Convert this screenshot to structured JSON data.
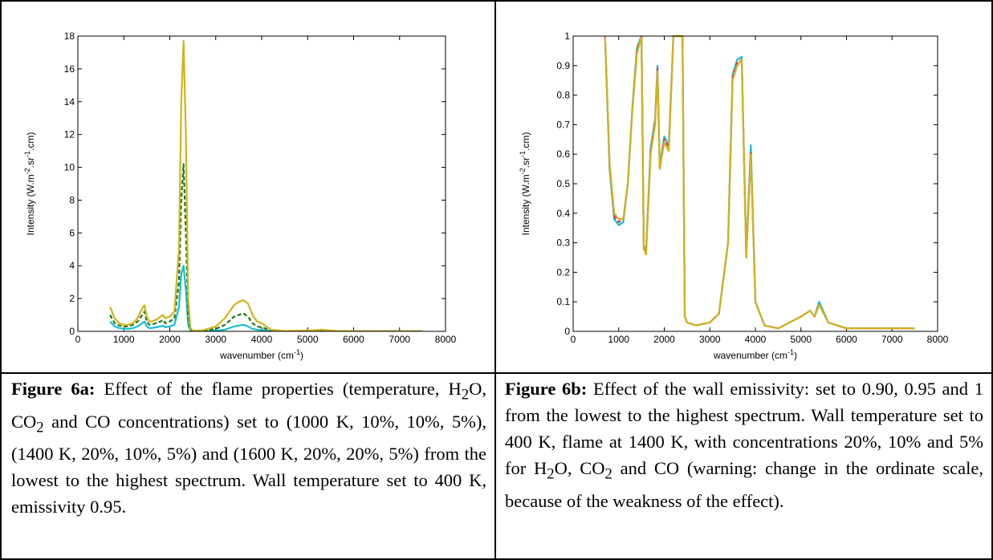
{
  "chart_data": [
    {
      "type": "line",
      "x_label": [
        "wavenumber (cm",
        {
          "sup": "-1"
        },
        ")"
      ],
      "y_label": [
        "Intensity (W.m",
        {
          "sup": "-2"
        },
        ".sr",
        {
          "sup": "-1"
        },
        ".cm)"
      ],
      "x": [
        700,
        800,
        900,
        1000,
        1100,
        1200,
        1300,
        1400,
        1450,
        1500,
        1550,
        1600,
        1700,
        1800,
        1850,
        1900,
        2000,
        2100,
        2200,
        2250,
        2300,
        2350,
        2400,
        2450,
        2500,
        2700,
        3000,
        3200,
        3400,
        3500,
        3600,
        3700,
        3800,
        3900,
        4000,
        4200,
        4500,
        5000,
        5200,
        5300,
        5400,
        5600,
        6000,
        7000,
        7500
      ],
      "xlim": [
        0,
        8000
      ],
      "xticks": [
        0,
        1000,
        2000,
        3000,
        4000,
        5000,
        6000,
        7000,
        8000
      ],
      "ylim": [
        0,
        18
      ],
      "yticks": [
        0,
        2,
        4,
        6,
        8,
        10,
        12,
        14,
        16,
        18
      ],
      "grid": false,
      "series": [
        {
          "color": "#17becf",
          "dashed": false,
          "values": [
            0.6,
            0.3,
            0.2,
            0.15,
            0.15,
            0.2,
            0.3,
            0.5,
            0.6,
            0.3,
            0.2,
            0.2,
            0.25,
            0.3,
            0.35,
            0.25,
            0.3,
            0.4,
            1.5,
            3.5,
            4.0,
            2.5,
            0.4,
            0.05,
            0.01,
            0.01,
            0.05,
            0.1,
            0.3,
            0.35,
            0.4,
            0.3,
            0.15,
            0.1,
            0.08,
            0.02,
            0.01,
            0.02,
            0.03,
            0.04,
            0.03,
            0.01,
            0.01,
            0.01,
            0.01
          ]
        },
        {
          "color": "#1a7a1a",
          "dashed": true,
          "values": [
            1.0,
            0.5,
            0.35,
            0.3,
            0.3,
            0.4,
            0.6,
            1.0,
            1.2,
            0.6,
            0.4,
            0.4,
            0.5,
            0.6,
            0.7,
            0.5,
            0.6,
            0.8,
            3,
            8,
            10.2,
            6,
            1,
            0.1,
            0.02,
            0.02,
            0.15,
            0.4,
            0.9,
            1.0,
            1.1,
            0.9,
            0.5,
            0.3,
            0.25,
            0.05,
            0.01,
            0.03,
            0.05,
            0.06,
            0.05,
            0.02,
            0.01,
            0.01,
            0.01
          ]
        },
        {
          "color": "#d4b21a",
          "dashed": false,
          "values": [
            1.5,
            0.8,
            0.5,
            0.4,
            0.4,
            0.5,
            0.8,
            1.4,
            1.6,
            0.9,
            0.6,
            0.6,
            0.7,
            0.9,
            1.0,
            0.8,
            0.9,
            1.2,
            5,
            14,
            17.7,
            12,
            2,
            0.2,
            0.05,
            0.05,
            0.3,
            0.8,
            1.6,
            1.8,
            1.9,
            1.7,
            1.0,
            0.6,
            0.5,
            0.1,
            0.02,
            0.05,
            0.08,
            0.1,
            0.08,
            0.03,
            0.02,
            0.01,
            0.01
          ]
        }
      ],
      "caption": {
        "label": "Figure 6a:",
        "parts": [
          " Effect of the flame properties (temperature, H",
          {
            "sub": "2"
          },
          "O, CO",
          {
            "sub": "2"
          },
          " and CO concentrations) set to (1000 K, 10%, 10%, 5%), (1400 K, 20%, 10%, 5%) and (1600 K, 20%, 20%, 5%) from the lowest to the highest spectrum. Wall temperature set to 400 K, emissivity 0.95."
        ]
      }
    },
    {
      "type": "line",
      "x_label": [
        "wavenumber (cm",
        {
          "sup": "-1"
        },
        ")"
      ],
      "y_label": [
        "Intensity (W.m",
        {
          "sup": "-2"
        },
        ".sr",
        {
          "sup": "-1"
        },
        ".cm)"
      ],
      "x": [
        700,
        800,
        900,
        1000,
        1100,
        1200,
        1300,
        1400,
        1450,
        1500,
        1550,
        1600,
        1700,
        1800,
        1850,
        1900,
        2000,
        2100,
        2200,
        2250,
        2300,
        2350,
        2400,
        2450,
        2500,
        2700,
        3000,
        3200,
        3400,
        3500,
        3600,
        3700,
        3800,
        3900,
        4000,
        4200,
        4500,
        5000,
        5200,
        5300,
        5400,
        5600,
        6000,
        7000,
        7500
      ],
      "xlim": [
        0,
        8000
      ],
      "xticks": [
        0,
        1000,
        2000,
        3000,
        4000,
        5000,
        6000,
        7000,
        8000
      ],
      "ylim": [
        0,
        1
      ],
      "yticks": [
        0,
        0.1,
        0.2,
        0.3,
        0.4,
        0.5,
        0.6,
        0.7,
        0.8,
        0.9,
        1
      ],
      "grid": false,
      "series": [
        {
          "color": "#17becf",
          "dashed": false,
          "values": [
            1,
            0.55,
            0.38,
            0.36,
            0.37,
            0.5,
            0.76,
            0.96,
            0.98,
            1,
            0.29,
            0.27,
            0.62,
            0.72,
            0.9,
            0.56,
            0.66,
            0.63,
            1,
            1,
            1,
            1,
            1,
            0.05,
            0.03,
            0.02,
            0.03,
            0.06,
            0.3,
            0.87,
            0.92,
            0.93,
            0.26,
            0.63,
            0.1,
            0.02,
            0.01,
            0.05,
            0.07,
            0.05,
            0.1,
            0.03,
            0.01,
            0.01,
            0.01
          ]
        },
        {
          "color": "#e0306a",
          "dashed": true,
          "values": [
            1,
            0.56,
            0.39,
            0.37,
            0.38,
            0.5,
            0.75,
            0.95,
            0.98,
            1,
            0.28,
            0.27,
            0.61,
            0.71,
            0.89,
            0.55,
            0.65,
            0.62,
            1,
            1,
            1,
            1,
            1,
            0.05,
            0.03,
            0.02,
            0.03,
            0.06,
            0.3,
            0.86,
            0.91,
            0.92,
            0.25,
            0.61,
            0.1,
            0.02,
            0.01,
            0.05,
            0.07,
            0.05,
            0.09,
            0.03,
            0.01,
            0.01,
            0.01
          ]
        },
        {
          "color": "#d4b21a",
          "dashed": false,
          "values": [
            1,
            0.57,
            0.4,
            0.38,
            0.38,
            0.5,
            0.75,
            0.94,
            0.97,
            1,
            0.28,
            0.26,
            0.6,
            0.7,
            0.88,
            0.55,
            0.64,
            0.61,
            1,
            1,
            1,
            1,
            1,
            0.05,
            0.03,
            0.02,
            0.03,
            0.06,
            0.3,
            0.85,
            0.9,
            0.92,
            0.25,
            0.6,
            0.1,
            0.02,
            0.01,
            0.05,
            0.07,
            0.05,
            0.09,
            0.03,
            0.01,
            0.01,
            0.01
          ]
        }
      ],
      "caption": {
        "label": "Figure 6b:",
        "parts": [
          " Effect of the wall emissivity: set to 0.90, 0.95 and 1 from the lowest to the highest spectrum. Wall temperature set to 400 K, flame at 1400 K, with concentrations 20%, 10% and 5% for H",
          {
            "sub": "2"
          },
          "O, CO",
          {
            "sub": "2"
          },
          " and CO (warning: change in the ordinate scale, because of the weakness of the effect)."
        ]
      }
    }
  ]
}
